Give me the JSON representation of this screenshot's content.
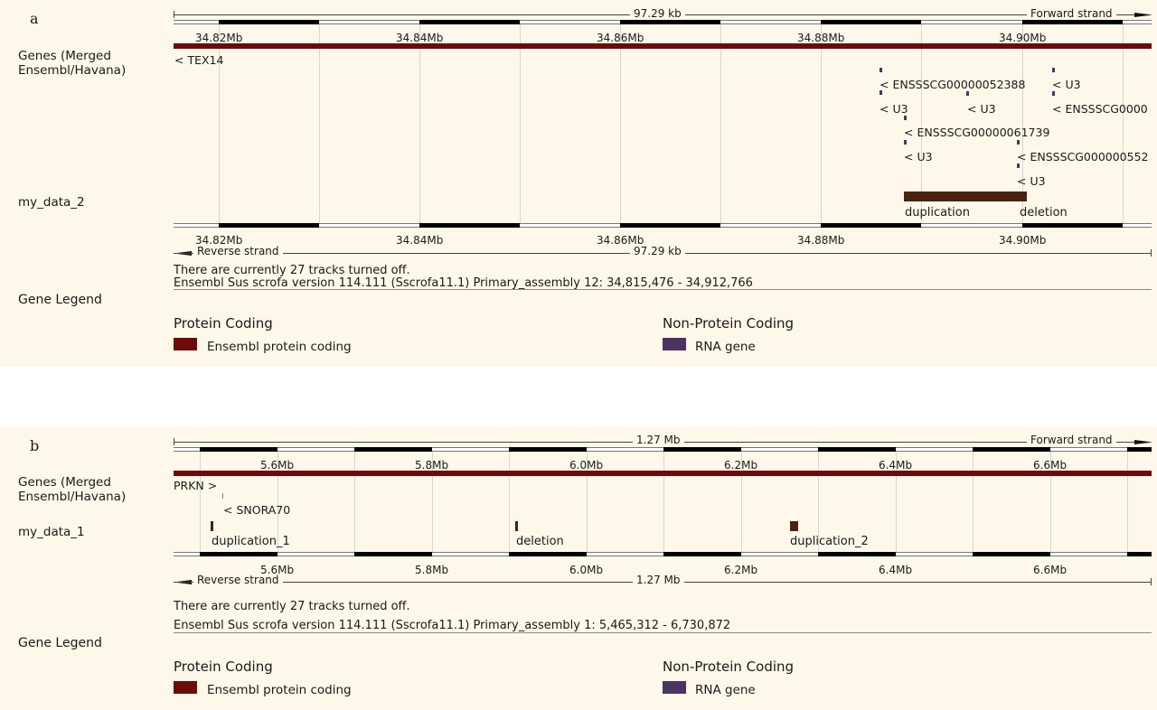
{
  "colors": {
    "protein_coding": "#6d0b0b",
    "rna_gene": "#4b3560",
    "feature": "#4a2210",
    "background": "#fdf8e9"
  },
  "panel_a": {
    "label": "a",
    "scale_label": "97.29 kb",
    "forward_strand": "Forward strand",
    "reverse_strand": "Reverse strand",
    "ticks": [
      "34.82Mb",
      "34.84Mb",
      "34.86Mb",
      "34.88Mb",
      "34.90Mb"
    ],
    "genes_track_label_1": "Genes (Merged",
    "genes_track_label_2": "Ensembl/Havana)",
    "genes": [
      "< TEX14",
      "< ENSSSCG00000052388",
      "< U3",
      "< U3",
      "< U3",
      "< ENSSSCG0000",
      "< ENSSSCG00000061739",
      "< U3",
      "< ENSSSCG000000552",
      "< U3"
    ],
    "data_track_label": "my_data_2",
    "features": [
      "duplication",
      "deletion"
    ],
    "tracks_off": "There are currently 27 tracks turned off.",
    "assembly": "Ensembl Sus scrofa version 114.111 (Sscrofa11.1) Primary_assembly 12: 34,815,476 - 34,912,766",
    "legend_title": "Gene Legend",
    "legend_heading_1": "Protein Coding",
    "legend_item_1": "Ensembl protein coding",
    "legend_heading_2": "Non-Protein Coding",
    "legend_item_2": "RNA gene"
  },
  "panel_b": {
    "label": "b",
    "scale_label": "1.27 Mb",
    "forward_strand": "Forward strand",
    "reverse_strand": "Reverse strand",
    "ticks": [
      "5.6Mb",
      "5.8Mb",
      "6.0Mb",
      "6.2Mb",
      "6.4Mb",
      "6.6Mb"
    ],
    "genes_track_label_1": "Genes (Merged",
    "genes_track_label_2": "Ensembl/Havana)",
    "genes": [
      "PRKN >",
      "< SNORA70"
    ],
    "data_track_label": "my_data_1",
    "features": [
      "duplication_1",
      "deletion",
      "duplication_2"
    ],
    "tracks_off": "There are currently 27 tracks turned off.",
    "assembly": "Ensembl Sus scrofa version 114.111 (Sscrofa11.1) Primary_assembly 1: 5,465,312 - 6,730,872",
    "legend_title": "Gene Legend",
    "legend_heading_1": "Protein Coding",
    "legend_item_1": "Ensembl protein coding",
    "legend_heading_2": "Non-Protein Coding",
    "legend_item_2": "RNA gene"
  }
}
